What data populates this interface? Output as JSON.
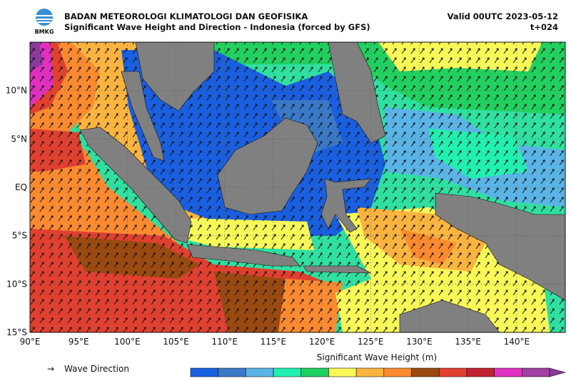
{
  "header": {
    "logo": "BMKG",
    "title": "BADAN METEOROLOGI KLIMATOLOGI DAN GEOFISIKA",
    "subtitle": "Significant Wave Height and Direction - Indonesia (forced by GFS)",
    "valid": "Valid 00UTC 2023-05-12",
    "lead": "t+024"
  },
  "map": {
    "xlim": [
      90,
      145
    ],
    "ylim": [
      -15,
      15
    ],
    "xticks": [
      {
        "value": 90,
        "label": "90°E"
      },
      {
        "value": 95,
        "label": "95°E"
      },
      {
        "value": 100,
        "label": "100°E"
      },
      {
        "value": 105,
        "label": "105°E"
      },
      {
        "value": 110,
        "label": "110°E"
      },
      {
        "value": 115,
        "label": "115°E"
      },
      {
        "value": 120,
        "label": "120°E"
      },
      {
        "value": 125,
        "label": "125°E"
      },
      {
        "value": 130,
        "label": "130°E"
      },
      {
        "value": 135,
        "label": "135°E"
      },
      {
        "value": 140,
        "label": "140°E"
      }
    ],
    "yticks": [
      {
        "value": -15,
        "label": "15°S"
      },
      {
        "value": -10,
        "label": "10°S"
      },
      {
        "value": -5,
        "label": "5°S"
      },
      {
        "value": 0,
        "label": "EQ"
      },
      {
        "value": 5,
        "label": "5°N"
      },
      {
        "value": 10,
        "label": "10°N"
      }
    ]
  },
  "legend": {
    "arrow": "→",
    "label": "Wave Direction"
  },
  "colorbar": {
    "title": "Significant Wave Height (m)",
    "colors": [
      "#1a5fe0",
      "#3a78c8",
      "#5ab4e6",
      "#22f0b0",
      "#1ed060",
      "#f8f858",
      "#fcb440",
      "#fc8a30",
      "#9a4a10",
      "#e04030",
      "#c02030",
      "#e030c0",
      "#a040a0",
      "#8a3a9a"
    ]
  }
}
